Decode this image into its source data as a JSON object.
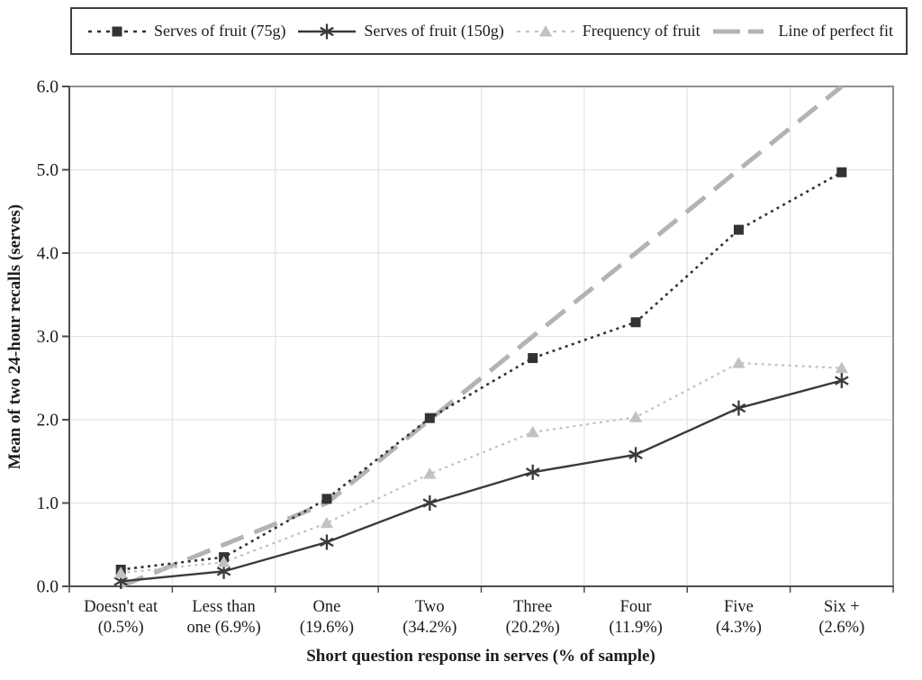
{
  "colors": {
    "background": "#ffffff",
    "text": "#1c1c1c",
    "gridline": "#e3e3e3",
    "plot_border": "#8f8f8f",
    "axis": "#4d4d4d",
    "legend_border": "#3d3d3d",
    "series_dark": "#333333",
    "series_light_gray": "#c2c2c2",
    "fit_gray": "#b3b3b3"
  },
  "chart_data": {
    "type": "line",
    "title": "",
    "xlabel": "Short question response in serves (% of sample)",
    "ylabel": "Mean of two 24-hour recalls (serves)",
    "ylim": [
      0,
      6
    ],
    "ytick_step": 1.0,
    "ytick_labels": [
      "0.0",
      "1.0",
      "2.0",
      "3.0",
      "4.0",
      "5.0",
      "6.0"
    ],
    "grid": true,
    "legend_position": "top",
    "categories": [
      "Doesn't eat\n(0.5%)",
      "Less than\none (6.9%)",
      "One\n(19.6%)",
      "Two\n(34.2%)",
      "Three\n(20.2%)",
      "Four\n(11.9%)",
      "Five\n(4.3%)",
      "Six +\n(2.6%)"
    ],
    "series": [
      {
        "name": "Serves of fruit (75g)",
        "marker": "square",
        "line": "dotted",
        "color": "#333333",
        "values": [
          0.2,
          0.35,
          1.05,
          2.02,
          2.74,
          3.17,
          4.28,
          4.97
        ]
      },
      {
        "name": "Serves of fruit (150g)",
        "marker": "star",
        "line": "solid",
        "color": "#3a3a3a",
        "values": [
          0.06,
          0.18,
          0.53,
          1.0,
          1.37,
          1.58,
          2.14,
          2.47
        ]
      },
      {
        "name": "Frequency of fruit",
        "marker": "triangle",
        "line": "dotted",
        "color": "#c2c2c2",
        "values": [
          0.16,
          0.29,
          0.76,
          1.35,
          1.85,
          2.03,
          2.68,
          2.62
        ]
      },
      {
        "name": "Line of perfect fit",
        "marker": "none",
        "line": "long-dash",
        "color": "#b3b3b3",
        "values": [
          0.0,
          0.5,
          1.0,
          2.0,
          3.0,
          4.0,
          5.0,
          6.0
        ]
      }
    ]
  }
}
